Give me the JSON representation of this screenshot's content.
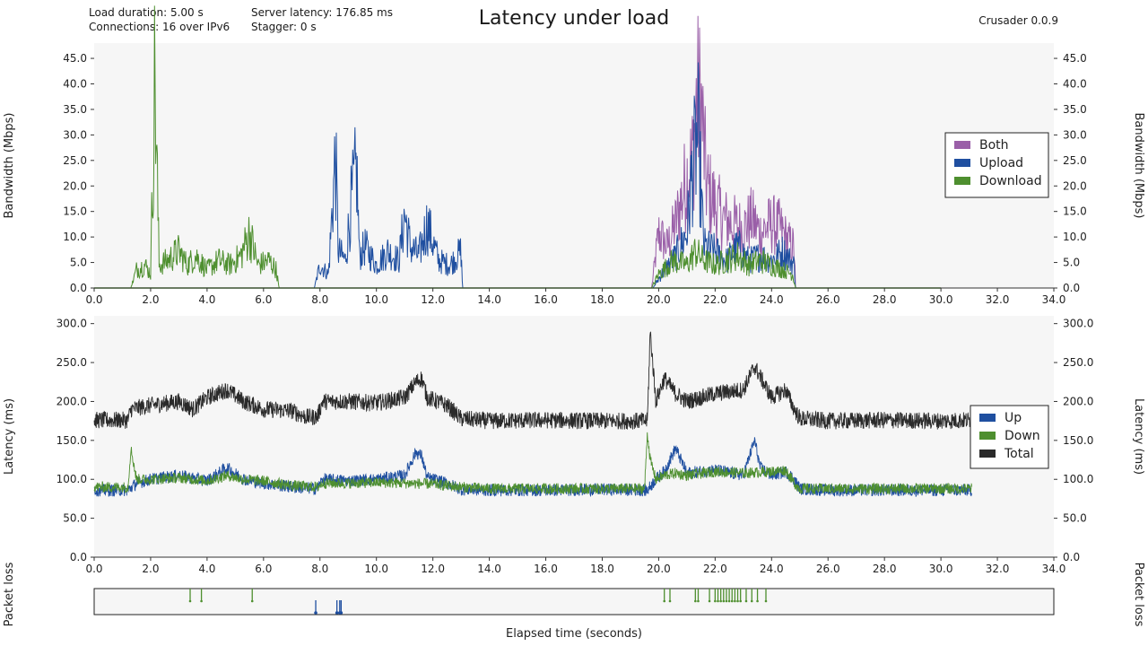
{
  "header": {
    "title": "Latency under load",
    "version": "Crusader 0.0.9",
    "load_duration": "Load duration: 5.00 s",
    "connections": "Connections: 16 over IPv6",
    "server_latency": "Server latency: 176.85 ms",
    "stagger": "Stagger: 0 s"
  },
  "colors": {
    "both": "#9a5fa8",
    "upload": "#1f4fa0",
    "download": "#4e8f2f",
    "total": "#2a2a2a",
    "plot_bg": "#f6f6f6"
  },
  "chart_data": [
    {
      "type": "line",
      "ylabel": "Bandwidth (Mbps)",
      "xlim": [
        0,
        34
      ],
      "ylim": [
        0,
        48
      ],
      "x_ticks": [
        "0.0",
        "2.0",
        "4.0",
        "6.0",
        "8.0",
        "10.0",
        "12.0",
        "14.0",
        "16.0",
        "18.0",
        "20.0",
        "22.0",
        "24.0",
        "26.0",
        "28.0",
        "30.0",
        "32.0",
        "34.0"
      ],
      "y_ticks": [
        "0.0",
        "5.0",
        "10.0",
        "15.0",
        "20.0",
        "25.0",
        "30.0",
        "35.0",
        "40.0",
        "45.0"
      ],
      "legend": {
        "placement": "right",
        "entries": [
          "Both",
          "Upload",
          "Download"
        ]
      },
      "series": [
        {
          "name": "Download",
          "color": "download",
          "x": [
            0,
            1.3,
            1.5,
            1.8,
            2.0,
            2.15,
            2.3,
            2.6,
            3.0,
            3.3,
            3.6,
            4.0,
            4.4,
            4.8,
            5.2,
            5.5,
            5.8,
            6.2,
            6.45,
            6.55,
            19.75,
            20.0,
            20.5,
            21.0,
            21.3,
            21.6,
            22.0,
            22.4,
            22.8,
            23.2,
            23.6,
            24.0,
            24.4,
            24.75,
            24.85,
            30.0
          ],
          "y": [
            0,
            0,
            4,
            5,
            3,
            47,
            5,
            6,
            8,
            5,
            7,
            4,
            6,
            5,
            7,
            12,
            5,
            6,
            4,
            0,
            0,
            3,
            6,
            5,
            8,
            6,
            5,
            6,
            7,
            5,
            6,
            5,
            4,
            3,
            0,
            0
          ]
        },
        {
          "name": "Upload",
          "color": "upload",
          "x": [
            0,
            7.8,
            8.0,
            8.3,
            8.55,
            8.65,
            8.9,
            9.1,
            9.3,
            9.4,
            9.6,
            10.0,
            10.4,
            10.8,
            11.0,
            11.2,
            11.5,
            11.8,
            12.2,
            12.6,
            13.0,
            13.05,
            19.8,
            20.1,
            20.6,
            21.0,
            21.2,
            21.4,
            21.6,
            22.0,
            22.4,
            22.8,
            23.2,
            23.6,
            24.0,
            24.4,
            24.8,
            24.85,
            30.0
          ],
          "y": [
            0,
            0,
            5,
            3,
            29,
            8,
            6,
            18,
            26,
            7,
            9,
            5,
            8,
            6,
            16,
            9,
            7,
            14,
            6,
            5,
            8,
            0,
            0,
            3,
            7,
            12,
            26,
            33,
            9,
            8,
            6,
            9,
            6,
            7,
            6,
            8,
            5,
            0,
            0
          ]
        },
        {
          "name": "Both",
          "color": "both",
          "x": [
            19.75,
            20.0,
            20.3,
            20.6,
            21.0,
            21.2,
            21.35,
            21.5,
            21.7,
            22.0,
            22.3,
            22.6,
            23.0,
            23.3,
            23.6,
            24.0,
            24.3,
            24.6,
            24.8,
            24.85
          ],
          "y": [
            0,
            12,
            9,
            14,
            24,
            28,
            41,
            40,
            22,
            18,
            15,
            14,
            13,
            15,
            12,
            14,
            13,
            10,
            9,
            0
          ]
        }
      ]
    },
    {
      "type": "line",
      "ylabel": "Latency (ms)",
      "xlim": [
        0,
        34
      ],
      "ylim": [
        0,
        310
      ],
      "x_ticks": [
        "0.0",
        "2.0",
        "4.0",
        "6.0",
        "8.0",
        "10.0",
        "12.0",
        "14.0",
        "16.0",
        "18.0",
        "20.0",
        "22.0",
        "24.0",
        "26.0",
        "28.0",
        "30.0",
        "32.0",
        "34.0"
      ],
      "y_ticks": [
        "0.0",
        "50.0",
        "100.0",
        "150.0",
        "200.0",
        "250.0",
        "300.0"
      ],
      "legend": {
        "placement": "right",
        "entries": [
          "Up",
          "Down",
          "Total"
        ]
      },
      "series": [
        {
          "name": "Total",
          "color": "total",
          "x": [
            0,
            1.2,
            1.3,
            2.0,
            3.0,
            3.5,
            4.0,
            4.7,
            5.3,
            6.0,
            7.0,
            7.5,
            7.9,
            8.1,
            9.0,
            10.0,
            11.0,
            11.4,
            11.6,
            11.8,
            12.5,
            13.0,
            14.0,
            16.0,
            18.0,
            19.5,
            19.6,
            19.7,
            19.9,
            20.2,
            20.6,
            21.0,
            22.0,
            23.0,
            23.4,
            24.0,
            24.5,
            24.8,
            25.0,
            26.0,
            28.0,
            30.0,
            31.1
          ],
          "y": [
            176,
            176,
            190,
            195,
            200,
            190,
            205,
            215,
            200,
            190,
            188,
            180,
            180,
            200,
            200,
            198,
            205,
            225,
            230,
            205,
            195,
            178,
            175,
            176,
            175,
            175,
            175,
            290,
            200,
            230,
            210,
            200,
            210,
            215,
            245,
            205,
            215,
            190,
            178,
            175,
            176,
            175,
            176
          ]
        },
        {
          "name": "Up",
          "color": "upload",
          "x": [
            0,
            1.2,
            1.5,
            2.0,
            3.0,
            4.0,
            4.7,
            5.3,
            6.0,
            7.0,
            7.9,
            8.1,
            9.0,
            10.0,
            11.0,
            11.4,
            11.6,
            11.8,
            12.5,
            13.0,
            14.0,
            16.0,
            18.0,
            19.6,
            19.9,
            20.2,
            20.6,
            21.0,
            22.0,
            23.0,
            23.4,
            23.6,
            24.0,
            24.5,
            24.8,
            25.0,
            26.0,
            28.0,
            30.0,
            31.1
          ],
          "y": [
            86,
            86,
            95,
            100,
            105,
            98,
            115,
            100,
            95,
            90,
            88,
            100,
            98,
            100,
            105,
            135,
            130,
            102,
            95,
            87,
            86,
            86,
            87,
            86,
            100,
            110,
            140,
            108,
            112,
            105,
            150,
            115,
            105,
            110,
            100,
            88,
            86,
            86,
            86,
            86
          ]
        },
        {
          "name": "Down",
          "color": "download",
          "x": [
            0,
            1.2,
            1.3,
            1.5,
            2.0,
            3.0,
            4.0,
            4.7,
            5.3,
            6.0,
            7.0,
            7.9,
            8.1,
            9.0,
            10.0,
            11.0,
            12.0,
            13.0,
            14.0,
            16.0,
            18.0,
            19.5,
            19.6,
            19.7,
            19.9,
            20.2,
            20.6,
            21.0,
            22.0,
            23.0,
            24.0,
            24.5,
            24.8,
            25.0,
            26.0,
            28.0,
            30.0,
            31.1
          ],
          "y": [
            90,
            90,
            140,
            100,
            100,
            102,
            98,
            105,
            100,
            98,
            92,
            90,
            95,
            95,
            96,
            95,
            94,
            90,
            88,
            88,
            88,
            88,
            160,
            125,
            100,
            105,
            108,
            105,
            110,
            108,
            110,
            112,
            95,
            88,
            88,
            88,
            88,
            88
          ]
        }
      ]
    },
    {
      "type": "scatter",
      "ylabel": "Packet loss",
      "xlabel": "Elapsed time (seconds)",
      "xlim": [
        0,
        34
      ],
      "series": [
        {
          "name": "Down",
          "color": "download",
          "x": [
            3.4,
            3.8,
            5.6,
            20.2,
            20.4,
            21.3,
            21.4,
            21.8,
            22.0,
            22.1,
            22.2,
            22.3,
            22.4,
            22.5,
            22.6,
            22.7,
            22.8,
            22.9,
            23.1,
            23.3,
            23.5,
            23.8
          ]
        },
        {
          "name": "Up",
          "color": "upload",
          "x": [
            7.85,
            8.6,
            8.7,
            8.75
          ]
        }
      ]
    }
  ]
}
